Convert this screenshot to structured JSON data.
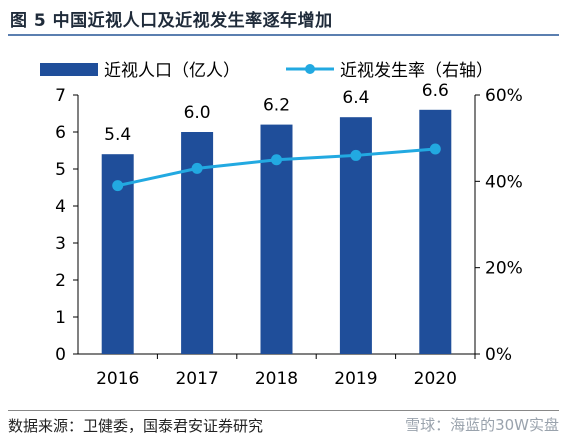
{
  "figure": {
    "title": "图 5  中国近视人口及近视发生率逐年增加",
    "source": "数据来源：卫健委，国泰君安证券研究",
    "watermark": "雪球：海蓝的30W实盘"
  },
  "chart_data": {
    "type": "bar+line",
    "categories": [
      "2016",
      "2017",
      "2018",
      "2019",
      "2020"
    ],
    "series": [
      {
        "name": "近视人口（亿人）",
        "type": "bar",
        "axis": "left",
        "values": [
          5.4,
          6.0,
          6.2,
          6.4,
          6.6
        ],
        "labels": [
          "5.4",
          "6.0",
          "6.2",
          "6.4",
          "6.6"
        ],
        "color": "#1f4e9a"
      },
      {
        "name": "近视发生率（右轴）",
        "type": "line",
        "axis": "right",
        "values": [
          0.39,
          0.43,
          0.45,
          0.46,
          0.475
        ],
        "color": "#22a9e1"
      }
    ],
    "y_left": {
      "min": 0,
      "max": 7,
      "ticks": [
        "0",
        "1",
        "2",
        "3",
        "4",
        "5",
        "6",
        "7"
      ]
    },
    "y_right": {
      "min": 0,
      "max": 0.6,
      "ticks": [
        "0%",
        "20%",
        "40%",
        "60%"
      ]
    },
    "legend": "top",
    "grid": false
  }
}
